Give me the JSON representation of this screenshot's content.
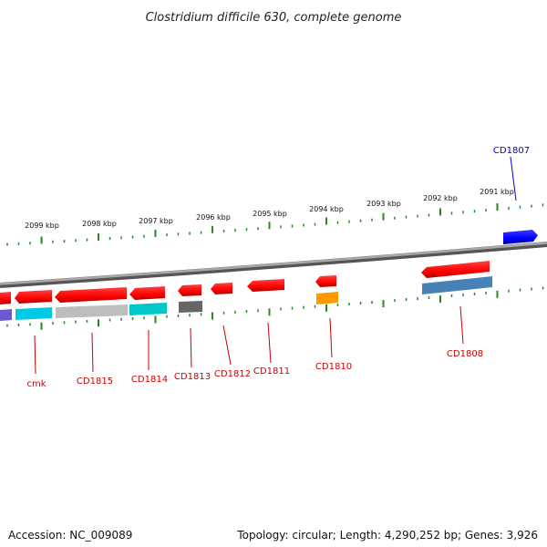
{
  "title": "Clostridium difficile 630, complete genome",
  "footer": {
    "accession": "Accession: NC_009089",
    "summary": "Topology: circular; Length: 4,290,252 bp; Genes: 3,926"
  },
  "ticks": [
    "2099 kbp",
    "2098 kbp",
    "2097 kbp",
    "2096 kbp",
    "2095 kbp",
    "2094 kbp",
    "2093 kbp",
    "2092 kbp",
    "2091 kbp"
  ],
  "genes": [
    {
      "label": "cmk",
      "color": "#cc0000"
    },
    {
      "label": "CD1815",
      "color": "#cc0000"
    },
    {
      "label": "CD1814",
      "color": "#cc0000"
    },
    {
      "label": "CD1813",
      "color": "#cc0000"
    },
    {
      "label": "CD1812",
      "color": "#cc0000"
    },
    {
      "label": "CD1811",
      "color": "#cc0000"
    },
    {
      "label": "CD1810",
      "color": "#cc0000"
    },
    {
      "label": "CD1808",
      "color": "#cc0000"
    },
    {
      "label": "CD1807",
      "color": "#0000cc"
    }
  ],
  "colors": {
    "forward_cds": "#0000ff",
    "reverse_cds": "#ff0000",
    "cog_cyan": "#00c8e6",
    "cog_gray": "#bdbdbd",
    "cog_teal": "#00c8c8",
    "cog_dark": "#666666",
    "cog_orange": "#ff9900",
    "cog_steel": "#4682b4",
    "cog_purple": "#6a5acd",
    "tick_green": "#228b22",
    "backbone": "#808080"
  }
}
